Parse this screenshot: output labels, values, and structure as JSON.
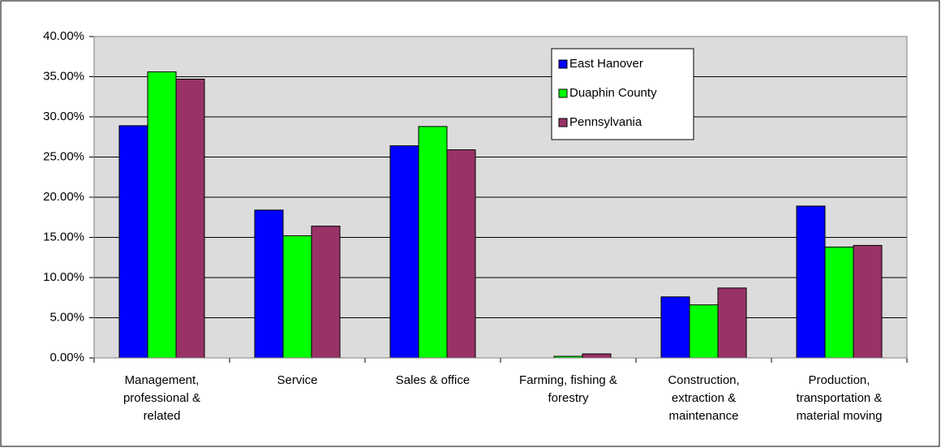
{
  "chart_data": {
    "type": "bar",
    "categories": [
      "Management, professional & related",
      "Service",
      "Sales & office",
      "Farming, fishing & forestry",
      "Construction, extraction & maintenance",
      "Production, transportation & material moving"
    ],
    "series": [
      {
        "name": "East Hanover",
        "color": "#0000ff",
        "values": [
          28.9,
          18.4,
          26.4,
          0,
          7.6,
          18.9
        ]
      },
      {
        "name": "Duaphin County",
        "color": "#00ff00",
        "values": [
          35.6,
          15.2,
          28.8,
          0.2,
          6.6,
          13.8
        ]
      },
      {
        "name": "Pennsylvania",
        "color": "#993366",
        "values": [
          34.7,
          16.4,
          25.9,
          0.5,
          8.7,
          14.0
        ]
      }
    ],
    "ylim": [
      0,
      40
    ],
    "yticks": [
      {
        "value": 0,
        "label": "0.00%"
      },
      {
        "value": 5,
        "label": "5.00%"
      },
      {
        "value": 10,
        "label": "10.00%"
      },
      {
        "value": 15,
        "label": "15.00%"
      },
      {
        "value": 20,
        "label": "20.00%"
      },
      {
        "value": 25,
        "label": "25.00%"
      },
      {
        "value": 30,
        "label": "30.00%"
      },
      {
        "value": 35,
        "label": "35.00%"
      },
      {
        "value": 40,
        "label": "40.00%"
      }
    ],
    "grid": true,
    "legend": "upper-right"
  }
}
